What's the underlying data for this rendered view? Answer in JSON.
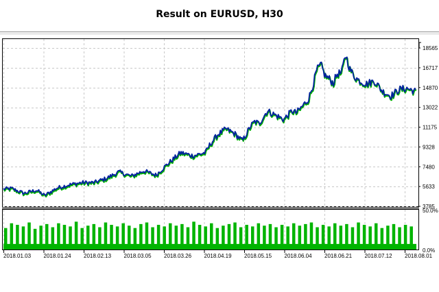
{
  "title": "Result on EURUSD, H30",
  "chart_data": [
    {
      "type": "line",
      "y_axis_side": "right",
      "ylim": [
        3785,
        19400
      ],
      "y_ticks": [
        3785,
        5633,
        7480,
        9328,
        11175,
        13022,
        14870,
        16717,
        18565
      ],
      "x_ticks": [
        "2018.01.03",
        "2018.01.24",
        "2018.02.13",
        "2018.03.05",
        "2018.03.26",
        "2018.04.19",
        "2018.05.15",
        "2018.06.04",
        "2018.06.21",
        "2018.07.12",
        "2018.08.01"
      ],
      "grid": true,
      "series": [
        {
          "name": "",
          "color": "#00209f",
          "x": [
            0,
            0.02,
            0.05,
            0.08,
            0.1,
            0.13,
            0.16,
            0.19,
            0.22,
            0.25,
            0.28,
            0.31,
            0.34,
            0.37,
            0.4,
            0.43,
            0.46,
            0.49,
            0.5,
            0.52,
            0.54,
            0.56,
            0.58,
            0.6,
            0.61,
            0.62,
            0.64,
            0.66,
            0.68,
            0.7,
            0.71,
            0.72,
            0.74,
            0.75,
            0.76,
            0.77,
            0.78,
            0.79,
            0.8,
            0.81,
            0.82,
            0.83,
            0.84,
            0.85,
            0.86,
            0.88,
            0.9,
            0.92,
            0.94,
            0.96,
            0.98,
            1.0
          ],
          "values": [
            5400,
            5450,
            5000,
            5300,
            4800,
            5500,
            5800,
            6000,
            6000,
            6400,
            7000,
            6600,
            7100,
            6700,
            7800,
            8800,
            8500,
            8800,
            9500,
            10500,
            11000,
            10600,
            9900,
            11300,
            11700,
            11500,
            12700,
            12300,
            11900,
            12700,
            12500,
            12900,
            13800,
            15000,
            16500,
            17000,
            16000,
            15700,
            15300,
            16200,
            16200,
            18000,
            16600,
            16000,
            15600,
            15200,
            15500,
            14500,
            14100,
            14700,
            14800,
            14500
          ]
        }
      ]
    },
    {
      "type": "bar",
      "ylim": [
        0,
        50
      ],
      "y_ticks_labels": [
        "50.0%",
        "0.0%"
      ],
      "y_ticks_values": [
        50,
        0
      ],
      "color": "#00b400",
      "baseline_level": 7,
      "spike_levels": [
        27,
        33,
        31,
        29,
        34,
        26,
        30,
        32,
        28,
        33,
        31,
        29,
        35,
        27,
        30,
        32,
        28,
        34,
        31,
        29,
        33,
        30,
        27,
        32,
        34,
        28,
        31,
        29,
        33,
        30,
        32,
        28,
        35,
        31,
        29,
        33,
        27,
        30,
        32,
        34,
        28,
        31,
        29,
        33,
        30,
        32,
        28,
        31,
        29,
        33,
        30,
        32,
        34,
        28,
        31,
        29,
        33,
        30,
        32,
        28,
        34,
        31,
        29,
        33,
        27,
        30,
        32,
        28,
        31,
        29
      ]
    }
  ]
}
